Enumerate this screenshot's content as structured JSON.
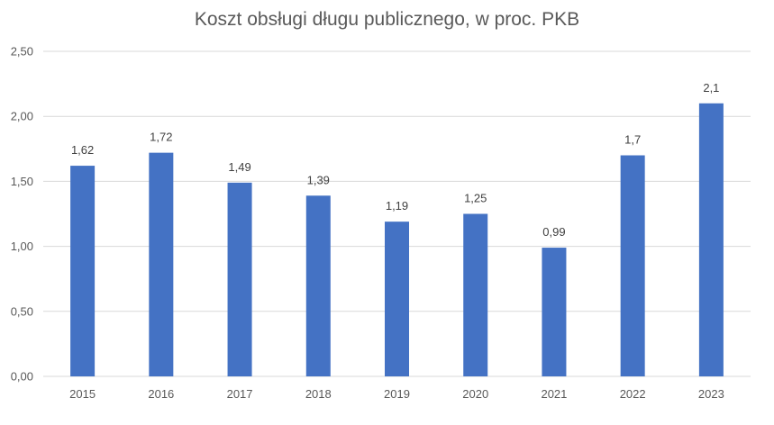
{
  "chart_data": {
    "type": "bar",
    "title": "Koszt obsługi długu publicznego, w proc. PKB",
    "xlabel": "",
    "ylabel": "",
    "categories": [
      "2015",
      "2016",
      "2017",
      "2018",
      "2019",
      "2020",
      "2021",
      "2022",
      "2023"
    ],
    "values": [
      1.62,
      1.72,
      1.49,
      1.39,
      1.19,
      1.25,
      0.99,
      1.7,
      2.1
    ],
    "value_labels": [
      "1,62",
      "1,72",
      "1,49",
      "1,39",
      "1,19",
      "1,25",
      "0,99",
      "1,7",
      "2,1"
    ],
    "ylim": [
      0,
      2.5
    ],
    "yticks": [
      0,
      0.5,
      1,
      1.5,
      2,
      2.5
    ],
    "ytick_labels": [
      "0,00",
      "0,50",
      "1,00",
      "1,50",
      "2,00",
      "2,50"
    ],
    "grid": true,
    "legend": "none",
    "colors": {
      "bar": "#4472c4",
      "grid": "#d9d9d9",
      "text": "#595959"
    }
  }
}
